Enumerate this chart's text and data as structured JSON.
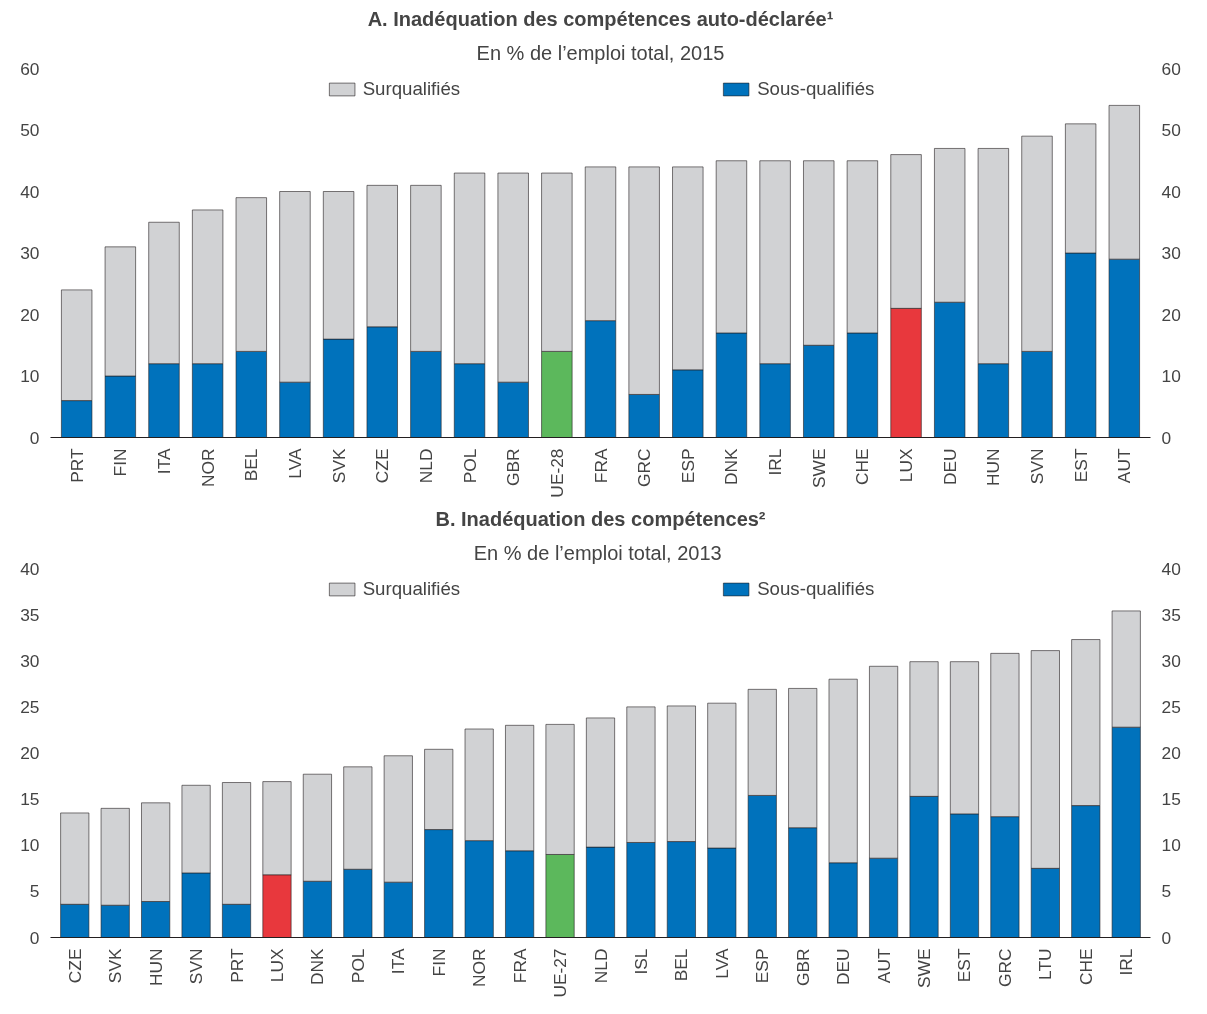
{
  "chart_data": [
    {
      "type": "bar",
      "stacked": true,
      "title": "A. Inadéquation des compétences auto-déclarée¹",
      "subtitle": "En % de l’emploi total, 2015",
      "categories": [
        "PRT",
        "FIN",
        "ITA",
        "NOR",
        "BEL",
        "LVA",
        "SVK",
        "CZE",
        "NLD",
        "POL",
        "GBR",
        "UE-28",
        "FRA",
        "GRC",
        "ESP",
        "DNK",
        "IRL",
        "SWE",
        "CHE",
        "LUX",
        "DEU",
        "HUN",
        "SVN",
        "EST",
        "AUT"
      ],
      "series": [
        {
          "name": "Sous-qualifiés",
          "color": "#0072bc",
          "colors": [
            "#0072bc",
            "#0072bc",
            "#0072bc",
            "#0072bc",
            "#0072bc",
            "#0072bc",
            "#0072bc",
            "#0072bc",
            "#0072bc",
            "#0072bc",
            "#0072bc",
            "#5cb85c",
            "#0072bc",
            "#0072bc",
            "#0072bc",
            "#0072bc",
            "#0072bc",
            "#0072bc",
            "#0072bc",
            "#e8383d",
            "#0072bc",
            "#0072bc",
            "#0072bc",
            "#0072bc",
            "#0072bc"
          ],
          "values": [
            6,
            10,
            12,
            12,
            14,
            9,
            16,
            18,
            14,
            12,
            9,
            14,
            19,
            7,
            11,
            17,
            12,
            15,
            17,
            21,
            22,
            12,
            14,
            30,
            29
          ]
        },
        {
          "name": "Surqualifiés",
          "color": "#d1d2d4",
          "values": [
            18,
            21,
            23,
            25,
            25,
            31,
            24,
            23,
            27,
            31,
            34,
            29,
            25,
            37,
            33,
            28,
            33,
            30,
            28,
            25,
            25,
            35,
            35,
            21,
            25
          ]
        }
      ],
      "ylim": [
        0,
        60
      ],
      "yticks": [
        0,
        10,
        20,
        30,
        40,
        50,
        60
      ],
      "y2lim": [
        0,
        60
      ],
      "y2ticks": [
        0,
        10,
        20,
        30,
        40,
        50,
        60
      ],
      "grid": false,
      "legend": "top"
    },
    {
      "type": "bar",
      "stacked": true,
      "title": "B. Inadéquation des compétences²",
      "subtitle": "En  % de l’emploi total, 2013",
      "categories": [
        "CZE",
        "SVK",
        "HUN",
        "SVN",
        "PRT",
        "LUX",
        "DNK",
        "POL",
        "ITA",
        "FIN",
        "NOR",
        "FRA",
        "UE-27",
        "NLD",
        "ISL",
        "BEL",
        "LVA",
        "ESP",
        "GBR",
        "DEU",
        "AUT",
        "SWE",
        "EST",
        "GRC",
        "LTU",
        "CHE",
        "IRL"
      ],
      "series": [
        {
          "name": "Sous-qualifiés",
          "color": "#0072bc",
          "colors": [
            "#0072bc",
            "#0072bc",
            "#0072bc",
            "#0072bc",
            "#0072bc",
            "#e8383d",
            "#0072bc",
            "#0072bc",
            "#0072bc",
            "#0072bc",
            "#0072bc",
            "#0072bc",
            "#5cb85c",
            "#0072bc",
            "#0072bc",
            "#0072bc",
            "#0072bc",
            "#0072bc",
            "#0072bc",
            "#0072bc",
            "#0072bc",
            "#0072bc",
            "#0072bc",
            "#0072bc",
            "#0072bc",
            "#0072bc",
            "#0072bc"
          ],
          "values": [
            3.6,
            3.5,
            3.9,
            7.0,
            3.6,
            6.8,
            6.1,
            7.4,
            6.0,
            11.7,
            10.5,
            9.4,
            9.0,
            9.8,
            10.3,
            10.4,
            9.7,
            15.4,
            11.9,
            8.1,
            8.6,
            15.3,
            13.4,
            13.1,
            7.5,
            14.3,
            22.8
          ]
        },
        {
          "name": "Surqualifiés",
          "color": "#d1d2d4",
          "values": [
            9.9,
            10.5,
            10.7,
            9.5,
            13.2,
            10.1,
            11.6,
            11.1,
            13.7,
            8.7,
            12.1,
            13.6,
            14.1,
            14.0,
            14.7,
            14.7,
            15.7,
            11.5,
            15.1,
            19.9,
            20.8,
            14.6,
            16.5,
            17.7,
            23.6,
            18.0,
            12.6
          ]
        }
      ],
      "ylim": [
        0,
        40
      ],
      "yticks": [
        0,
        5,
        10,
        15,
        20,
        25,
        30,
        35,
        40
      ],
      "y2lim": [
        0,
        40
      ],
      "y2ticks": [
        0,
        5,
        10,
        15,
        20,
        25,
        30,
        35,
        40
      ],
      "grid": false,
      "legend": "top"
    }
  ]
}
